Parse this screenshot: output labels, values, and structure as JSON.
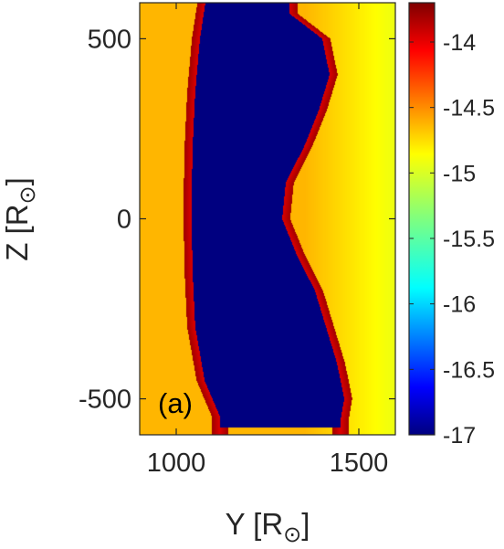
{
  "chart_data": {
    "type": "heatmap",
    "panel_label": "(a)",
    "xlabel": {
      "main": "Y [R",
      "sub": "⊙",
      "close": "]"
    },
    "ylabel": {
      "main": "Z [R",
      "sub": "⊙",
      "close": "]"
    },
    "xlim": [
      900,
      1600
    ],
    "ylim": [
      -600,
      600
    ],
    "xticks": [
      1000,
      1500
    ],
    "yticks": [
      500,
      0,
      -500
    ],
    "xtick_labels": [
      "1000",
      "1500"
    ],
    "ytick_labels": [
      "500",
      "0",
      "-500"
    ],
    "colorbar": {
      "colormap": "jet",
      "clim": [
        -17,
        -13.7
      ],
      "ticks": [
        -14,
        -14.5,
        -15,
        -15.5,
        -16,
        -16.5,
        -17
      ],
      "tick_labels": [
        "-14",
        "-14.5",
        "-15",
        "-15.5",
        "-16",
        "-16.5",
        "-17"
      ]
    },
    "field": {
      "background_level": -14.7,
      "background_right_level": -15.0,
      "cavity_level": -17.0,
      "rim_level": -14.0,
      "cavity_left_edge": [
        [
          600,
          1080
        ],
        [
          500,
          1065
        ],
        [
          350,
          1052
        ],
        [
          200,
          1045
        ],
        [
          50,
          1042
        ],
        [
          0,
          1042
        ],
        [
          -150,
          1045
        ],
        [
          -300,
          1052
        ],
        [
          -450,
          1078
        ],
        [
          -550,
          1120
        ]
      ],
      "cavity_right_edge": [
        [
          570,
          1310
        ],
        [
          500,
          1400
        ],
        [
          400,
          1420
        ],
        [
          300,
          1390
        ],
        [
          200,
          1350
        ],
        [
          100,
          1300
        ],
        [
          0,
          1290
        ],
        [
          -100,
          1330
        ],
        [
          -200,
          1380
        ],
        [
          -300,
          1410
        ],
        [
          -400,
          1440
        ],
        [
          -500,
          1460
        ],
        [
          -560,
          1450
        ]
      ]
    }
  }
}
